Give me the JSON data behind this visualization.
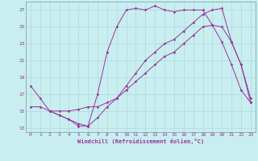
{
  "xlabel": "Windchill (Refroidissement éolien,°C)",
  "background_color": "#c8eef0",
  "grid_color": "#b0d8dc",
  "line_color": "#993399",
  "xlim": [
    -0.5,
    23.5
  ],
  "ylim": [
    12.5,
    28.0
  ],
  "yticks": [
    13,
    15,
    17,
    19,
    21,
    23,
    25,
    27
  ],
  "xticks": [
    0,
    1,
    2,
    3,
    4,
    5,
    6,
    7,
    8,
    9,
    10,
    11,
    12,
    13,
    14,
    15,
    16,
    17,
    18,
    19,
    20,
    21,
    22,
    23
  ],
  "line1_x": [
    0,
    1,
    2,
    3,
    4,
    5,
    6,
    7,
    8,
    9,
    10,
    11,
    12,
    13,
    14,
    15,
    16,
    17,
    18,
    19,
    20,
    21,
    22,
    23
  ],
  "line1_y": [
    18.0,
    16.5,
    15.0,
    14.5,
    14.0,
    13.2,
    13.2,
    17.0,
    22.0,
    25.0,
    27.0,
    27.2,
    27.0,
    27.5,
    27.0,
    26.8,
    27.0,
    27.0,
    27.0,
    25.2,
    23.2,
    20.5,
    17.5,
    16.0
  ],
  "line2_x": [
    0,
    1,
    2,
    3,
    4,
    5,
    6,
    7,
    8,
    9,
    10,
    11,
    12,
    13,
    14,
    15,
    16,
    17,
    18,
    19,
    20,
    21,
    22,
    23
  ],
  "line2_y": [
    15.5,
    15.5,
    15.0,
    15.0,
    15.0,
    15.2,
    15.5,
    15.5,
    16.0,
    16.5,
    17.5,
    18.5,
    19.5,
    20.5,
    21.5,
    22.0,
    23.0,
    24.0,
    25.0,
    25.2,
    25.0,
    23.2,
    20.5,
    16.0
  ],
  "line3_x": [
    2,
    3,
    4,
    5,
    6,
    7,
    8,
    9,
    10,
    11,
    12,
    13,
    14,
    15,
    16,
    17,
    18,
    19,
    20,
    21,
    22,
    23
  ],
  "line3_y": [
    15.0,
    14.5,
    14.0,
    13.5,
    13.2,
    14.2,
    15.5,
    16.5,
    18.0,
    19.5,
    21.0,
    22.0,
    23.0,
    23.5,
    24.5,
    25.5,
    26.5,
    27.0,
    27.2,
    23.2,
    20.5,
    16.5
  ]
}
